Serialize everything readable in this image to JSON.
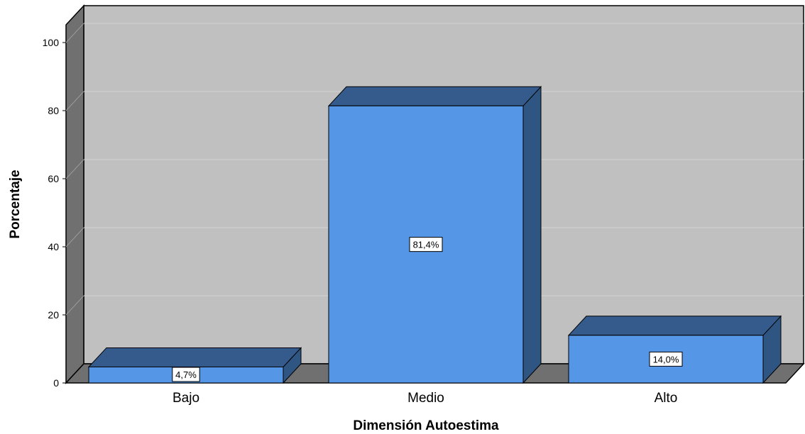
{
  "chart_data": {
    "type": "bar",
    "categories": [
      "Bajo",
      "Medio",
      "Alto"
    ],
    "values": [
      4.7,
      81.4,
      14.0
    ],
    "data_labels": [
      "4,7%",
      "81,4%",
      "14,0%"
    ],
    "title": "",
    "xlabel": "Dimensión Autoestima",
    "ylabel": "Porcentaje",
    "ylim": [
      0,
      100
    ],
    "yticks": [
      0,
      20,
      40,
      60,
      80,
      100
    ],
    "grid": true,
    "style": "3d",
    "colors": {
      "bar_front": "#5596e6",
      "bar_top": "#345b8c",
      "bar_side": "#2f5682",
      "plot_back": "#c0c0c0",
      "plot_side_wall": "#707070",
      "plot_floor": "#707070",
      "gridline": "#d4d4d4",
      "outline": "#000000"
    }
  }
}
